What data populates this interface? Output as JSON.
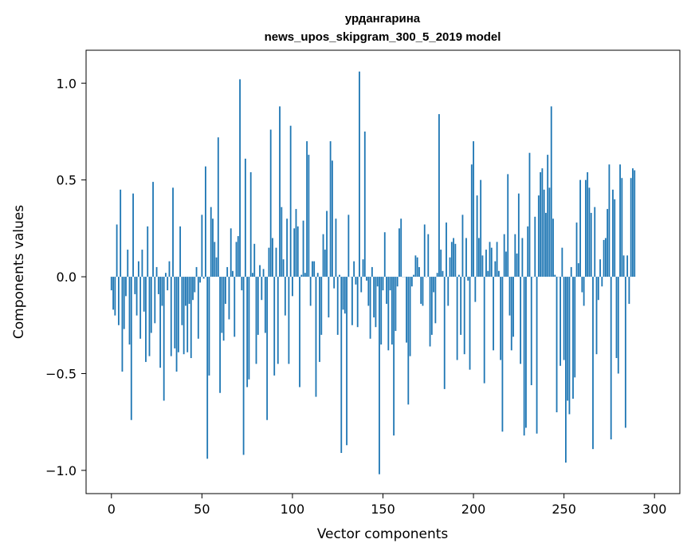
{
  "chart_data": {
    "type": "bar",
    "title_line1": "урдангарина",
    "title_line2": "news_upos_skipgram_300_5_2019 model",
    "xlabel": "Vector components",
    "ylabel": "Components values",
    "xlim": [
      -14,
      314
    ],
    "ylim": [
      -1.12,
      1.17
    ],
    "xticks": [
      0,
      50,
      100,
      150,
      200,
      250,
      300
    ],
    "xtick_labels": [
      "0",
      "50",
      "100",
      "150",
      "200",
      "250",
      "300"
    ],
    "yticks": [
      -1.0,
      -0.5,
      0.0,
      0.5,
      1.0
    ],
    "ytick_labels": [
      "−1.0",
      "−0.5",
      "0.0",
      "0.5",
      "1.0"
    ],
    "bar_color": "#1f77b4",
    "grid": false,
    "values": [
      -0.07,
      -0.17,
      -0.2,
      0.27,
      -0.25,
      0.45,
      -0.49,
      -0.27,
      -0.1,
      0.14,
      -0.35,
      -0.74,
      0.43,
      -0.09,
      -0.2,
      0.08,
      -0.32,
      0.14,
      -0.18,
      -0.44,
      0.26,
      -0.41,
      -0.29,
      0.49,
      -0.24,
      0.05,
      -0.09,
      -0.47,
      -0.15,
      -0.64,
      0.02,
      -0.07,
      0.08,
      -0.41,
      0.46,
      -0.37,
      -0.49,
      -0.39,
      0.26,
      -0.25,
      -0.4,
      -0.15,
      -0.39,
      -0.14,
      -0.42,
      -0.12,
      -0.08,
      0.05,
      -0.32,
      -0.03,
      0.32,
      -0.01,
      0.57,
      -0.94,
      -0.51,
      0.36,
      0.3,
      0.18,
      0.1,
      0.72,
      -0.6,
      -0.29,
      -0.33,
      -0.14,
      0.05,
      -0.22,
      0.25,
      0.03,
      -0.31,
      0.18,
      0.21,
      1.02,
      -0.07,
      -0.92,
      0.61,
      -0.57,
      -0.53,
      0.54,
      0.02,
      0.17,
      -0.45,
      -0.3,
      0.06,
      -0.12,
      0.04,
      -0.29,
      -0.74,
      0.15,
      0.76,
      0.2,
      -0.51,
      0.15,
      -0.45,
      0.88,
      0.36,
      0.09,
      -0.2,
      0.3,
      -0.45,
      0.78,
      -0.1,
      0.25,
      0.35,
      0.26,
      -0.57,
      0.01,
      0.29,
      0.02,
      0.7,
      0.63,
      -0.15,
      0.08,
      0.08,
      -0.62,
      0.02,
      -0.44,
      -0.3,
      0.22,
      0.14,
      0.34,
      -0.21,
      0.7,
      0.6,
      -0.06,
      0.3,
      -0.3,
      0.01,
      -0.91,
      -0.17,
      -0.19,
      -0.87,
      0.32,
      0.0,
      -0.25,
      0.08,
      -0.04,
      -0.26,
      1.06,
      -0.08,
      0.09,
      0.75,
      -0.02,
      -0.15,
      -0.32,
      0.05,
      -0.21,
      -0.26,
      -0.05,
      -1.02,
      -0.35,
      -0.07,
      0.23,
      -0.14,
      -0.38,
      -0.07,
      -0.35,
      -0.82,
      -0.28,
      -0.05,
      0.25,
      0.3,
      0.0,
      0.0,
      -0.34,
      -0.66,
      -0.41,
      -0.05,
      0.01,
      0.11,
      0.1,
      0.05,
      -0.14,
      -0.15,
      0.27,
      0.0,
      0.22,
      -0.36,
      -0.3,
      -0.08,
      -0.24,
      0.02,
      0.84,
      0.14,
      0.03,
      -0.58,
      0.28,
      -0.15,
      0.1,
      0.18,
      0.2,
      0.17,
      -0.43,
      0.01,
      -0.3,
      0.32,
      -0.4,
      0.2,
      -0.02,
      -0.48,
      0.58,
      0.7,
      -0.13,
      0.42,
      0.2,
      0.5,
      0.11,
      -0.55,
      0.14,
      0.03,
      0.18,
      0.15,
      -0.38,
      0.08,
      0.18,
      0.03,
      -0.43,
      -0.8,
      0.22,
      0.13,
      0.53,
      -0.2,
      -0.38,
      -0.31,
      0.22,
      0.12,
      0.43,
      -0.45,
      0.2,
      -0.82,
      -0.78,
      0.26,
      0.64,
      -0.56,
      0.0,
      0.31,
      -0.81,
      0.42,
      0.54,
      0.56,
      0.45,
      0.33,
      0.63,
      0.46,
      0.88,
      0.3,
      0.01,
      -0.7,
      0.0,
      -0.46,
      0.15,
      -0.43,
      -0.96,
      -0.64,
      -0.71,
      0.05,
      -0.63,
      -0.52,
      0.28,
      0.07,
      0.5,
      -0.08,
      -0.15,
      0.5,
      0.54,
      0.46,
      0.33,
      -0.89,
      0.36,
      -0.4,
      -0.12,
      0.09,
      -0.05,
      0.19,
      0.2,
      0.35,
      0.58,
      -0.84,
      0.45,
      0.4,
      -0.42,
      -0.5,
      0.58,
      0.51,
      0.11,
      -0.78,
      0.11,
      -0.14,
      0.51,
      0.56,
      0.55
    ]
  }
}
